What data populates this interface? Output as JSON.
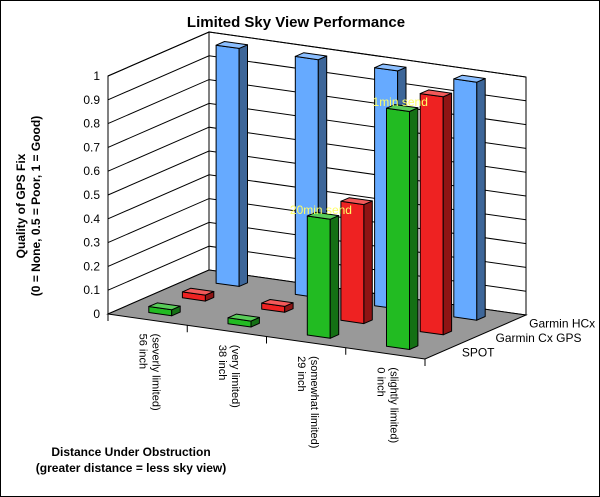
{
  "chart_data": {
    "type": "bar",
    "style": "3d-clustered-depth",
    "title": "Limited Sky View Performance",
    "ylabel_lines": [
      "Quality of GPS Fix",
      "(0 = None, 0.5 = Poor, 1 = Good)"
    ],
    "xlabel_lines": [
      "Distance Under Obstruction",
      "(greater distance = less sky view)"
    ],
    "ylim": [
      0,
      1
    ],
    "yticks": [
      "0",
      "0.1",
      "0.2",
      "0.3",
      "0.4",
      "0.5",
      "0.6",
      "0.7",
      "0.8",
      "0.9",
      "1"
    ],
    "grid": true,
    "categories": [
      [
        "56 inch",
        "(severly limited)"
      ],
      [
        "38 inch",
        "(very limited)"
      ],
      [
        "29 inch",
        "(somewhat limited)"
      ],
      [
        "0 inch",
        "(slightly limited)"
      ]
    ],
    "series": [
      {
        "name": "SPOT",
        "color": "#22bb22",
        "values": [
          0,
          0,
          0.5,
          1
        ]
      },
      {
        "name": "Garmin Cx GPS",
        "color": "#ee2222",
        "values": [
          0,
          0,
          0.5,
          1
        ]
      },
      {
        "name": "Garmin HCx GPS",
        "color": "#66aaff",
        "values": [
          1,
          1,
          1,
          1
        ]
      }
    ],
    "annotations": [
      {
        "text": "20min send",
        "series": 0,
        "category": 2
      },
      {
        "text": "1min send",
        "series": 0,
        "category": 3
      }
    ]
  }
}
